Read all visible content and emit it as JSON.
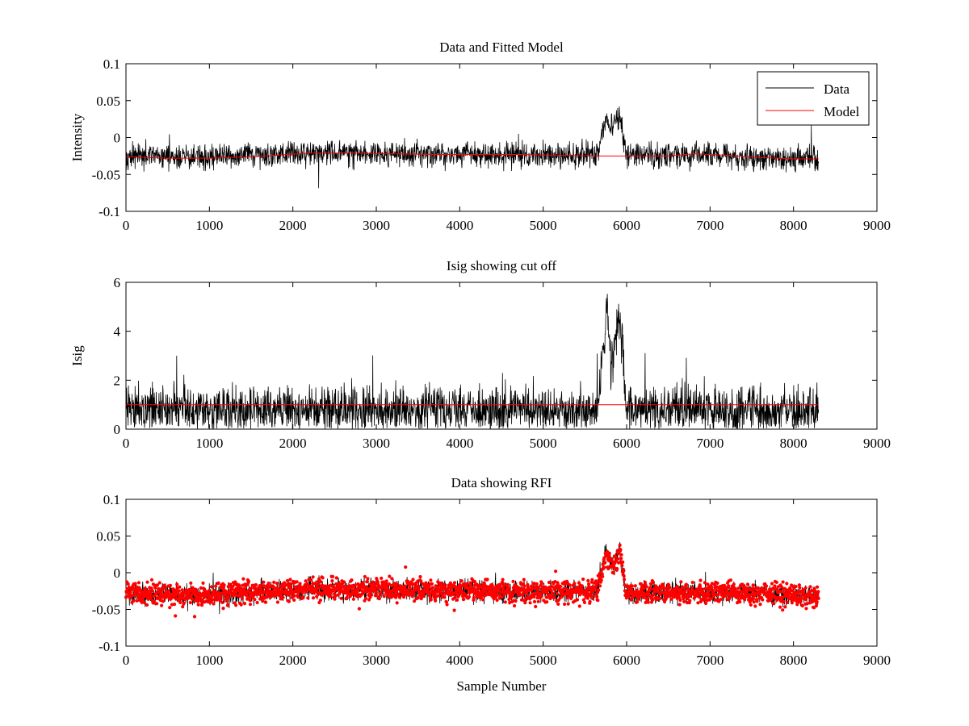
{
  "figure": {
    "colors": {
      "data": "#000000",
      "model": "#ff0000",
      "rfi": "#ff0000",
      "axes": "#000000"
    }
  },
  "chart_data": [
    {
      "type": "line",
      "title": "Data and Fitted Model",
      "xlabel": "",
      "ylabel": "Intensity",
      "xlim": [
        0,
        9000
      ],
      "ylim": [
        -0.1,
        0.1
      ],
      "xticks": [
        0,
        1000,
        2000,
        3000,
        4000,
        5000,
        6000,
        7000,
        8000,
        9000
      ],
      "yticks": [
        -0.1,
        -0.05,
        0,
        0.05,
        0.1
      ],
      "xtick_labels": [
        "0",
        "1000",
        "2000",
        "3000",
        "4000",
        "5000",
        "6000",
        "7000",
        "8000",
        "9000"
      ],
      "ytick_labels": [
        "-0.1",
        "-0.05",
        "0",
        "0.05",
        "0.1"
      ],
      "grid": false,
      "legend": {
        "position": "top-right",
        "entries": [
          "Data",
          "Model"
        ]
      },
      "series": [
        {
          "name": "Data",
          "color": "#000000",
          "style": "noisy-line",
          "x_range": [
            0,
            8300
          ],
          "baseline": [
            [
              0,
              -0.025
            ],
            [
              1000,
              -0.028
            ],
            [
              2200,
              -0.02
            ],
            [
              3500,
              -0.022
            ],
            [
              5000,
              -0.024
            ],
            [
              5650,
              -0.024
            ],
            [
              5750,
              0.025
            ],
            [
              5830,
              0.01
            ],
            [
              5920,
              0.03
            ],
            [
              5990,
              -0.025
            ],
            [
              7000,
              -0.024
            ],
            [
              8300,
              -0.03
            ]
          ],
          "noise_amplitude": 0.014,
          "y_range_observed": [
            -0.068,
            0.048
          ]
        },
        {
          "name": "Model",
          "color": "#ff0000",
          "style": "line",
          "x": [
            0,
            500,
            1000,
            1500,
            1800,
            2200,
            2700,
            3200,
            3700,
            4200,
            4700,
            5200,
            5700,
            6000,
            6500,
            6800,
            7200,
            7600,
            8000,
            8300
          ],
          "y": [
            -0.026,
            -0.028,
            -0.028,
            -0.026,
            -0.024,
            -0.021,
            -0.021,
            -0.022,
            -0.023,
            -0.023,
            -0.023,
            -0.024,
            -0.025,
            -0.025,
            -0.025,
            -0.022,
            -0.024,
            -0.027,
            -0.029,
            -0.029
          ]
        }
      ]
    },
    {
      "type": "line",
      "title": "Isig showing cut off",
      "xlabel": "",
      "ylabel": "Isig",
      "xlim": [
        0,
        9000
      ],
      "ylim": [
        0,
        6
      ],
      "xticks": [
        0,
        1000,
        2000,
        3000,
        4000,
        5000,
        6000,
        7000,
        8000,
        9000
      ],
      "yticks": [
        0,
        2,
        4,
        6
      ],
      "xtick_labels": [
        "0",
        "1000",
        "2000",
        "3000",
        "4000",
        "5000",
        "6000",
        "7000",
        "8000",
        "9000"
      ],
      "ytick_labels": [
        "0",
        "2",
        "4",
        "6"
      ],
      "grid": false,
      "series": [
        {
          "color": "#000000",
          "style": "noisy-line",
          "x_range": [
            0,
            8300
          ],
          "baseline": [
            [
              0,
              0.8
            ],
            [
              5650,
              0.8
            ],
            [
              5720,
              3.5
            ],
            [
              5760,
              4.8
            ],
            [
              5820,
              2.5
            ],
            [
              5900,
              4.6
            ],
            [
              5950,
              3.5
            ],
            [
              5990,
              0.8
            ],
            [
              8300,
              0.8
            ]
          ],
          "noise_amplitude": 0.8,
          "y_range_observed": [
            0,
            5.7
          ]
        },
        {
          "color": "#ff0000",
          "style": "line",
          "x": [
            0,
            8300
          ],
          "y": [
            1,
            1
          ]
        }
      ]
    },
    {
      "type": "scatter",
      "title": "Data showing RFI",
      "xlabel": "Sample Number",
      "ylabel": "",
      "xlim": [
        0,
        9000
      ],
      "ylim": [
        -0.1,
        0.1
      ],
      "xticks": [
        0,
        1000,
        2000,
        3000,
        4000,
        5000,
        6000,
        7000,
        8000,
        9000
      ],
      "yticks": [
        -0.1,
        -0.05,
        0,
        0.05,
        0.1
      ],
      "xtick_labels": [
        "0",
        "1000",
        "2000",
        "3000",
        "4000",
        "5000",
        "6000",
        "7000",
        "8000",
        "9000"
      ],
      "ytick_labels": [
        "-0.1",
        "-0.05",
        "0",
        "0.05",
        "0.1"
      ],
      "grid": false,
      "series": [
        {
          "color": "#000000",
          "style": "noisy-line",
          "x_range": [
            0,
            8300
          ],
          "baseline": [
            [
              0,
              -0.028
            ],
            [
              1000,
              -0.03
            ],
            [
              2200,
              -0.022
            ],
            [
              3500,
              -0.024
            ],
            [
              5000,
              -0.026
            ],
            [
              5650,
              -0.026
            ],
            [
              5750,
              0.025
            ],
            [
              5830,
              0.01
            ],
            [
              5920,
              0.03
            ],
            [
              5990,
              -0.028
            ],
            [
              7000,
              -0.026
            ],
            [
              8300,
              -0.032
            ]
          ],
          "noise_amplitude": 0.012
        },
        {
          "color": "#ff0000",
          "style": "markers",
          "marker": "dot",
          "x_range": [
            0,
            8300
          ],
          "baseline": [
            [
              0,
              -0.028
            ],
            [
              1000,
              -0.03
            ],
            [
              2200,
              -0.022
            ],
            [
              3500,
              -0.024
            ],
            [
              5000,
              -0.026
            ],
            [
              5650,
              -0.026
            ],
            [
              5750,
              0.025
            ],
            [
              5830,
              0.01
            ],
            [
              5920,
              0.03
            ],
            [
              5990,
              -0.028
            ],
            [
              7000,
              -0.026
            ],
            [
              8300,
              -0.032
            ]
          ],
          "noise_amplitude": 0.012,
          "y_range_observed": [
            -0.062,
            0.048
          ]
        }
      ]
    }
  ]
}
